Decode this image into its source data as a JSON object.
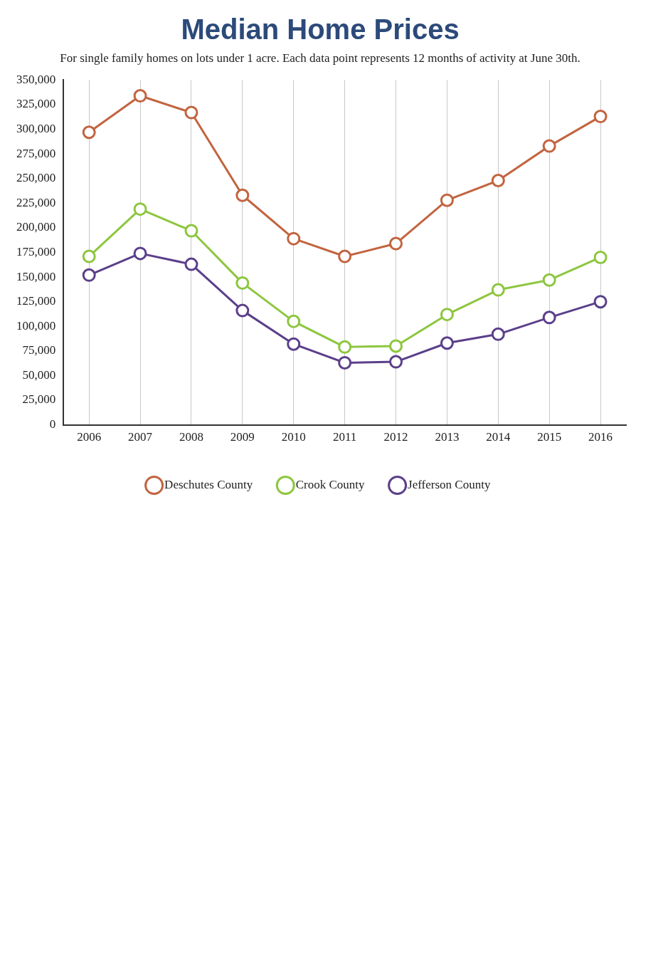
{
  "chart_data": {
    "type": "line",
    "title": "Median Home Prices",
    "subtitle": "For single family homes on lots under 1 acre. Each data point represents 12 months of activity at June 30th.",
    "categories": [
      "2006",
      "2007",
      "2008",
      "2009",
      "2010",
      "2011",
      "2012",
      "2013",
      "2014",
      "2015",
      "2016"
    ],
    "series": [
      {
        "name": "Deschutes County",
        "color": "#c2643f",
        "values": [
          297000,
          334000,
          317000,
          233000,
          189000,
          171000,
          184000,
          228000,
          248000,
          283000,
          313000
        ]
      },
      {
        "name": "Crook County",
        "color": "#8dc63f",
        "values": [
          171000,
          219000,
          197000,
          144000,
          105000,
          79000,
          80000,
          112000,
          137000,
          147000,
          170000
        ]
      },
      {
        "name": "Jefferson County",
        "color": "#5b3f8a",
        "values": [
          152000,
          174000,
          163000,
          116000,
          82000,
          63000,
          64000,
          83000,
          92000,
          109000,
          125000
        ]
      }
    ],
    "ylim": [
      0,
      350000
    ],
    "yticks": [
      0,
      {
        "value": 25000,
        "label": "25,000"
      },
      {
        "value": 50000,
        "label": "50,000"
      },
      {
        "value": 75000,
        "label": "75,000"
      },
      {
        "value": 100000,
        "label": "100,000"
      },
      {
        "value": 125000,
        "label": "125,000"
      },
      {
        "value": 150000,
        "label": "150,000"
      },
      {
        "value": 175000,
        "label": "175,000"
      },
      {
        "value": 200000,
        "label": "200,000"
      },
      {
        "value": 225000,
        "label": "225,000"
      },
      {
        "value": 250000,
        "label": "250,000"
      },
      {
        "value": 275000,
        "label": "275,000"
      },
      {
        "value": 300000,
        "label": "300,000"
      },
      {
        "value": 325000,
        "label": "325,000"
      },
      {
        "value": 350000,
        "label": "350,000"
      }
    ],
    "grid": "x",
    "legend": "bottom",
    "marker": "circle",
    "line_style": "solid"
  }
}
